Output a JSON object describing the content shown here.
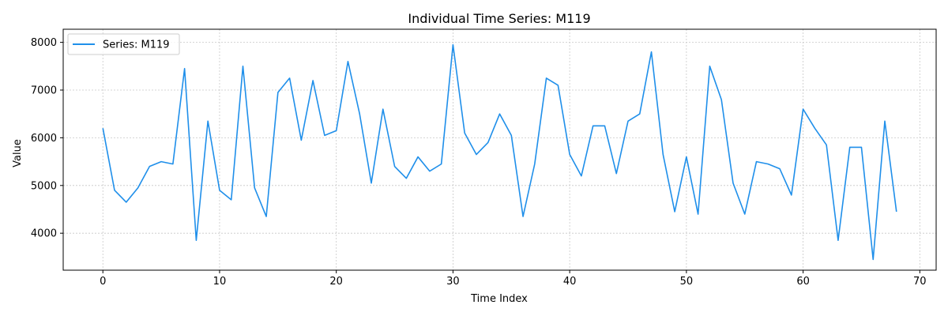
{
  "chart_data": {
    "type": "line",
    "title": "Individual Time Series: M119",
    "xlabel": "Time Index",
    "ylabel": "Value",
    "xlim": [
      -3.4,
      71.4
    ],
    "ylim": [
      3225,
      8275
    ],
    "xticks": [
      0,
      10,
      20,
      30,
      40,
      50,
      60,
      70
    ],
    "yticks": [
      4000,
      5000,
      6000,
      7000,
      8000
    ],
    "grid": true,
    "legend_position": "upper-left",
    "series": [
      {
        "name": "Series: M119",
        "color": "#1f8fea",
        "x": [
          0,
          1,
          2,
          3,
          4,
          5,
          6,
          7,
          8,
          9,
          10,
          11,
          12,
          13,
          14,
          15,
          16,
          17,
          18,
          19,
          20,
          21,
          22,
          23,
          24,
          25,
          26,
          27,
          28,
          29,
          30,
          31,
          32,
          33,
          34,
          35,
          36,
          37,
          38,
          39,
          40,
          41,
          42,
          43,
          44,
          45,
          46,
          47,
          48,
          49,
          50,
          51,
          52,
          53,
          54,
          55,
          56,
          57,
          58,
          59,
          60,
          61,
          62,
          63,
          64,
          65,
          66,
          67,
          68
        ],
        "values": [
          6200,
          4900,
          4650,
          4950,
          5400,
          5500,
          5450,
          7450,
          3850,
          6350,
          4900,
          4700,
          7500,
          4950,
          4350,
          6950,
          7250,
          5950,
          7200,
          6050,
          6150,
          7600,
          6500,
          5050,
          6600,
          5400,
          5150,
          5600,
          5300,
          5450,
          7950,
          6100,
          5650,
          5900,
          6500,
          6050,
          4350,
          5450,
          7250,
          7100,
          5650,
          5200,
          6250,
          6250,
          5250,
          6350,
          6500,
          7800,
          5650,
          4450,
          5600,
          4400,
          7500,
          6800,
          5050,
          4400,
          5500,
          5450,
          5350,
          4800,
          6600,
          6200,
          5850,
          3850,
          5800,
          5800,
          3450,
          6350,
          4450
        ]
      }
    ]
  }
}
